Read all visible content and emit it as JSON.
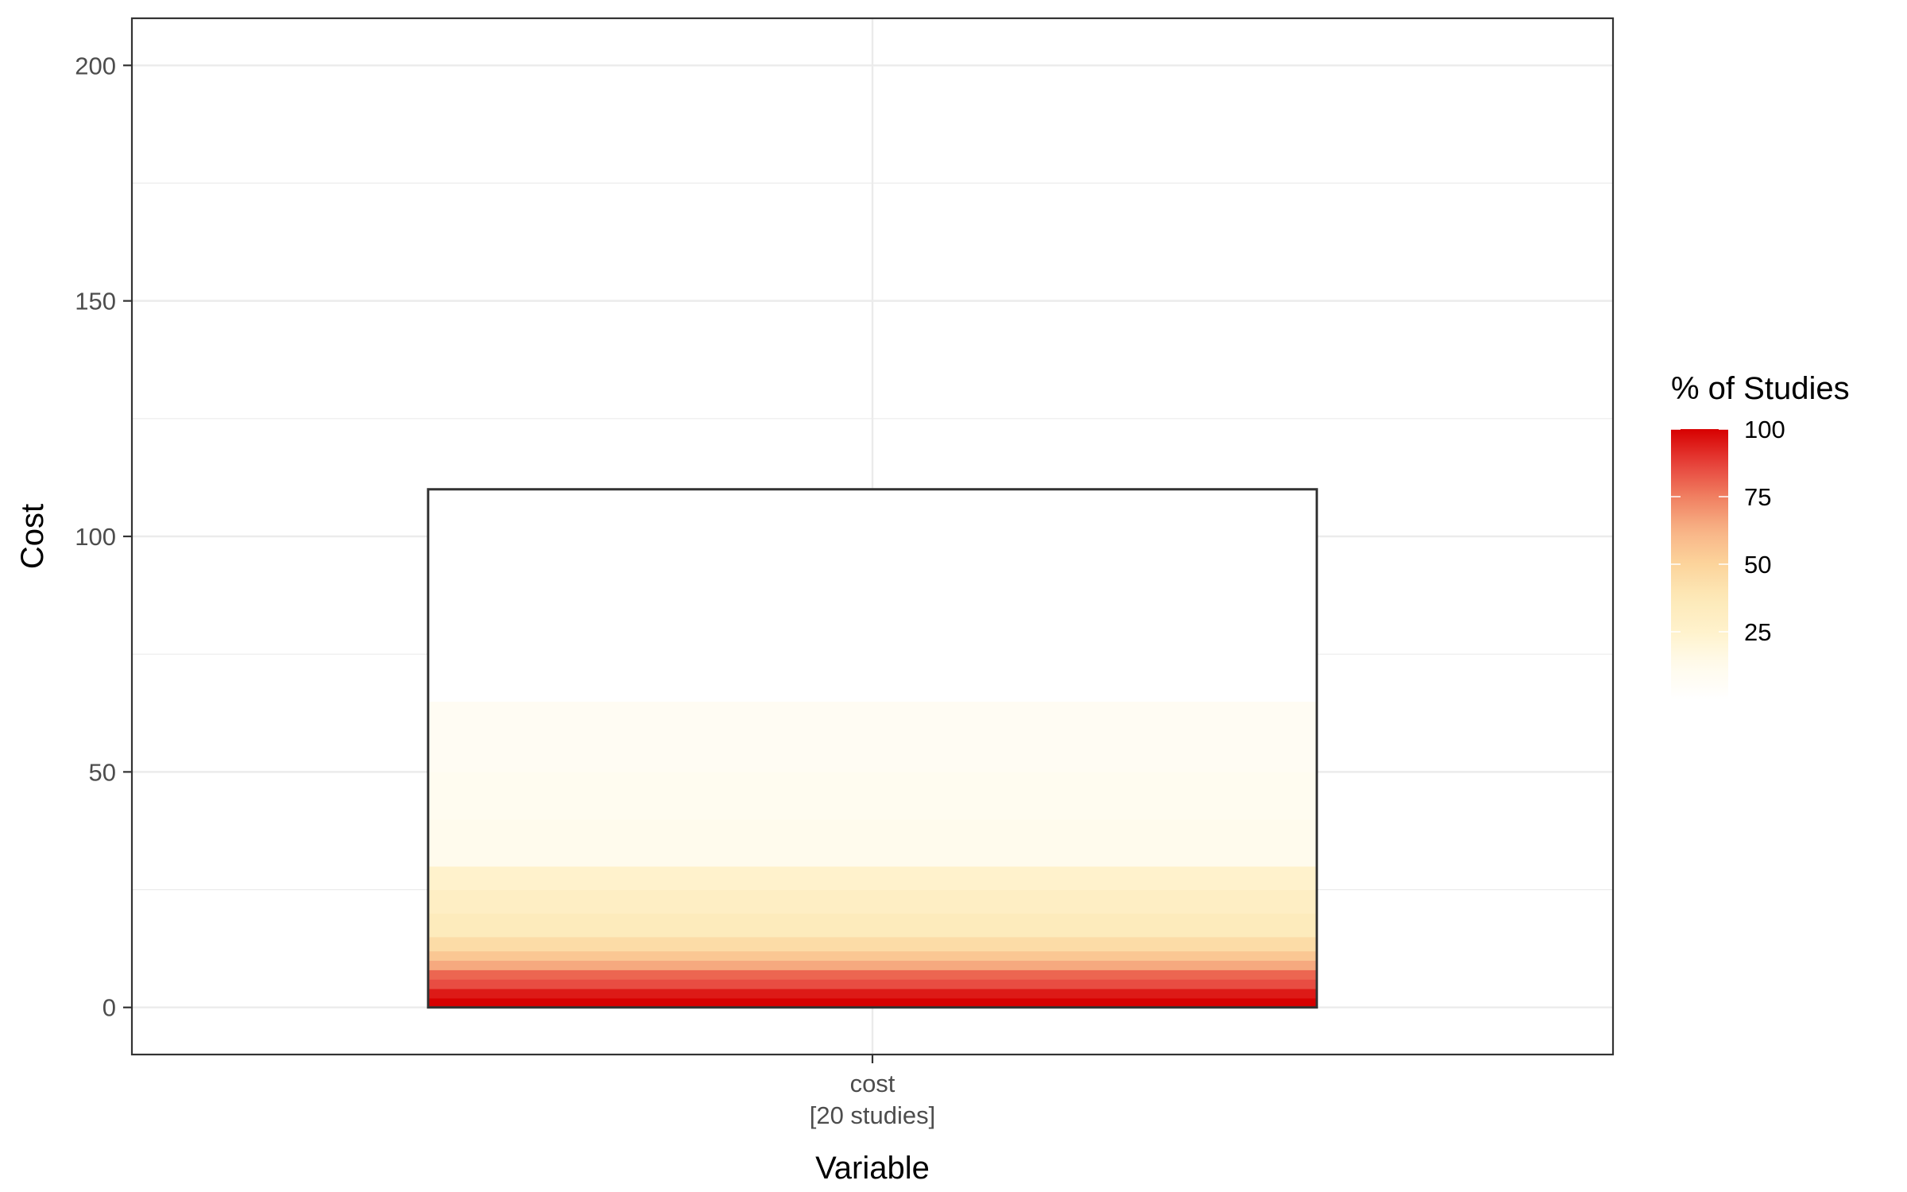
{
  "chart_data": {
    "type": "bar",
    "xlabel": "Variable",
    "ylabel": "Cost",
    "ylim": [
      -10,
      210
    ],
    "y_ticks": [
      0,
      50,
      100,
      150,
      200
    ],
    "y_tick_labels": [
      "0",
      "50",
      "100",
      "150",
      "200"
    ],
    "categories": [
      {
        "id": "cost",
        "label_line1": "cost",
        "label_line2": "[20 studies]",
        "total": 110
      }
    ],
    "bands": [
      {
        "from": 0,
        "to": 1,
        "pct": 100
      },
      {
        "from": 1,
        "to": 2,
        "pct": 100
      },
      {
        "from": 2,
        "to": 3,
        "pct": 95
      },
      {
        "from": 3,
        "to": 4,
        "pct": 95
      },
      {
        "from": 4,
        "to": 5,
        "pct": 85
      },
      {
        "from": 5,
        "to": 6,
        "pct": 85
      },
      {
        "from": 6,
        "to": 8,
        "pct": 80
      },
      {
        "from": 8,
        "to": 10,
        "pct": 65
      },
      {
        "from": 10,
        "to": 12,
        "pct": 55
      },
      {
        "from": 12,
        "to": 15,
        "pct": 45
      },
      {
        "from": 15,
        "to": 20,
        "pct": 35
      },
      {
        "from": 20,
        "to": 25,
        "pct": 30
      },
      {
        "from": 25,
        "to": 30,
        "pct": 25
      },
      {
        "from": 30,
        "to": 40,
        "pct": 12
      },
      {
        "from": 40,
        "to": 50,
        "pct": 10
      },
      {
        "from": 50,
        "to": 65,
        "pct": 8
      },
      {
        "from": 65,
        "to": 110,
        "pct": 0
      }
    ],
    "legend": {
      "title": "% of Studies",
      "ticks": [
        25,
        50,
        75,
        100
      ],
      "tick_labels": [
        "25",
        "50",
        "75",
        "100"
      ],
      "range": [
        0,
        100
      ],
      "position": "right"
    },
    "colors": {
      "scale": [
        "#ffffff",
        "#fffbec",
        "#fff2cc",
        "#fde9b8",
        "#fcd49b",
        "#f8b487",
        "#f07f61",
        "#e6413a",
        "#d70000"
      ],
      "grid": "#ebebeb",
      "panel_border": "#333333",
      "bar_outline": "#333333"
    },
    "grid": true
  }
}
